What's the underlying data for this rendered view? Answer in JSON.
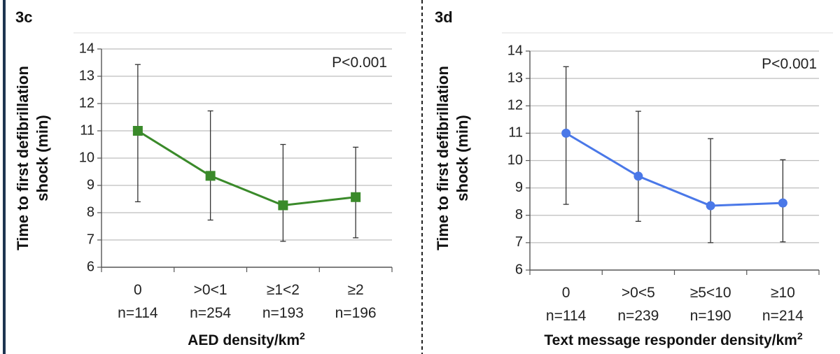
{
  "chart_data": [
    {
      "panel_label": "3c",
      "type": "line",
      "categories": [
        "0",
        ">0<1",
        "≥1<2",
        "≥2"
      ],
      "category_counts": [
        "n=114",
        "n=254",
        "n=193",
        "n=196"
      ],
      "series": [
        {
          "values": [
            11.0,
            9.35,
            8.27,
            8.57
          ],
          "error_low": [
            8.4,
            7.73,
            6.95,
            7.08
          ],
          "error_high": [
            13.43,
            11.73,
            10.5,
            10.4
          ],
          "marker": "square",
          "color": "#3a8a2a"
        }
      ],
      "annotation": "P<0.001",
      "ylabel_line1": "Time to first defibrillation",
      "ylabel_line2": "shock (min)",
      "xlabel_prefix": "AED density/km",
      "xlabel_sup": "2",
      "ylim": [
        6,
        14
      ],
      "yticks": [
        "6",
        "7",
        "8",
        "9",
        "10",
        "11",
        "12",
        "13",
        "14"
      ],
      "grid": true,
      "legend": "none"
    },
    {
      "panel_label": "3d",
      "type": "line",
      "categories": [
        "0",
        ">0<5",
        "≥5<10",
        "≥10"
      ],
      "category_counts": [
        "n=114",
        "n=239",
        "n=190",
        "n=214"
      ],
      "series": [
        {
          "values": [
            11.0,
            9.43,
            8.35,
            8.45
          ],
          "error_low": [
            8.4,
            7.78,
            7.0,
            7.03
          ],
          "error_high": [
            13.43,
            11.8,
            10.8,
            10.03
          ],
          "marker": "circle",
          "color": "#4a78e8"
        }
      ],
      "annotation": "P<0.001",
      "ylabel_line1": "Time to first defibrillation",
      "ylabel_line2": "shock (min)",
      "xlabel_prefix": "Text message responder density/km",
      "xlabel_sup": "2",
      "ylim": [
        6,
        14
      ],
      "yticks": [
        "6",
        "7",
        "8",
        "9",
        "10",
        "11",
        "12",
        "13",
        "14"
      ],
      "grid": true,
      "legend": "none"
    }
  ]
}
